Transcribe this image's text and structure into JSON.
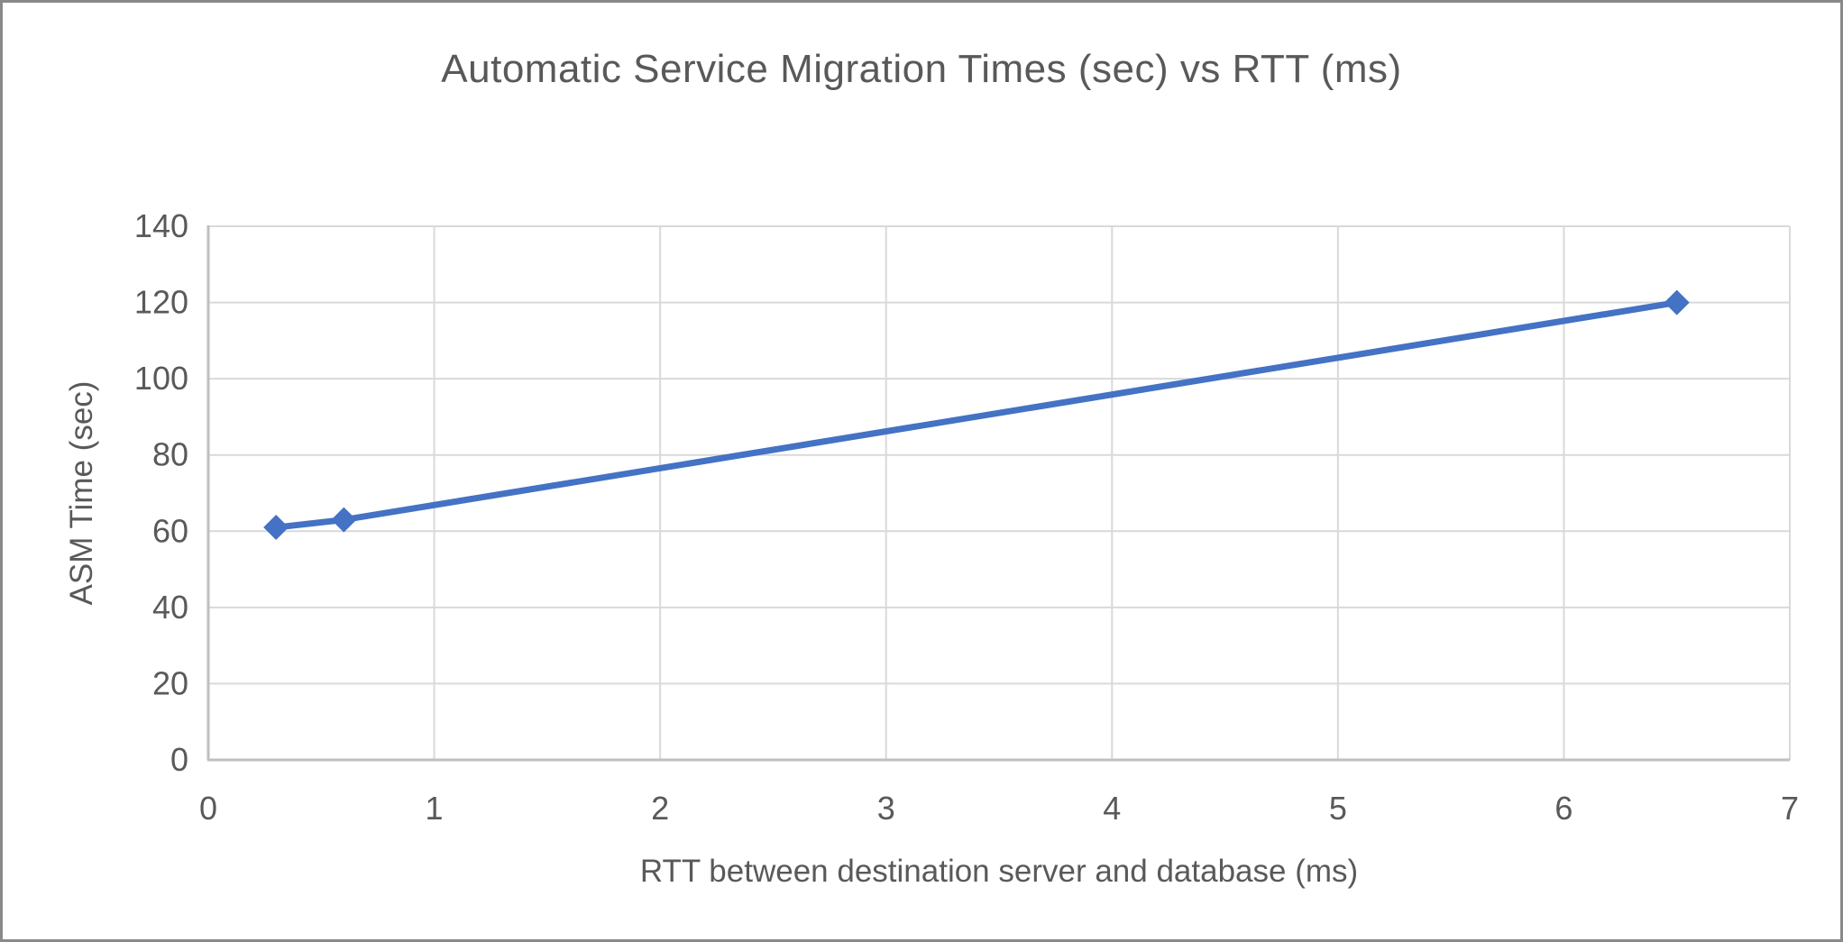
{
  "frame": {
    "border_color": "#898989",
    "background": "#FFFFFF"
  },
  "chart_data": {
    "type": "line",
    "title": "Automatic Service Migration Times (sec) vs RTT (ms)",
    "xlabel": "RTT between destination server and database (ms)",
    "ylabel": "ASM Time (sec)",
    "series": [
      {
        "name": "ASM Time",
        "x": [
          0.3,
          0.6,
          6.5
        ],
        "y": [
          61,
          63,
          120
        ],
        "color": "#4472C4",
        "marker": "diamond"
      }
    ],
    "xlim": [
      0,
      7
    ],
    "ylim": [
      0,
      140
    ],
    "x_ticks": [
      0,
      1,
      2,
      3,
      4,
      5,
      6,
      7
    ],
    "y_ticks": [
      0,
      20,
      40,
      60,
      80,
      100,
      120,
      140
    ],
    "grid": true,
    "legend": "none",
    "colors": {
      "gridline": "#D9D9D9",
      "axis_line": "#BFBFBF",
      "text": "#595959"
    }
  }
}
